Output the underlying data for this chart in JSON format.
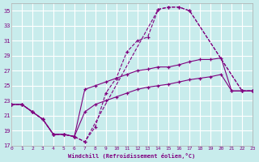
{
  "xlabel": "Windchill (Refroidissement éolien,°C)",
  "bg_color": "#c8ecec",
  "grid_color": "#ffffff",
  "line_color": "#800080",
  "xlim": [
    0,
    23
  ],
  "ylim": [
    17,
    36
  ],
  "yticks": [
    17,
    19,
    21,
    23,
    25,
    27,
    29,
    31,
    33,
    35
  ],
  "xticks": [
    0,
    1,
    2,
    3,
    4,
    5,
    6,
    7,
    8,
    9,
    10,
    11,
    12,
    13,
    14,
    15,
    16,
    17,
    18,
    19,
    20,
    21,
    22,
    23
  ],
  "curve1_x": [
    0,
    1,
    2,
    3,
    4,
    5,
    6,
    7,
    8,
    9,
    10,
    11,
    12,
    13,
    14,
    15,
    16,
    17,
    22,
    23
  ],
  "curve1_y": [
    22.5,
    22.5,
    21.5,
    20.5,
    18.5,
    18.5,
    18.2,
    17.5,
    19.5,
    24.0,
    26.0,
    29.5,
    31.0,
    31.5,
    35.2,
    35.5,
    35.5,
    35.0,
    24.3,
    24.3
  ],
  "curve2_x": [
    0,
    1,
    2,
    3,
    4,
    5,
    6,
    7,
    14,
    15,
    16,
    17,
    22,
    23
  ],
  "curve2_y": [
    22.5,
    22.5,
    21.5,
    20.5,
    18.5,
    18.5,
    18.2,
    17.5,
    35.2,
    35.5,
    35.5,
    35.0,
    24.3,
    24.3
  ],
  "curve3_x": [
    0,
    1,
    2,
    3,
    4,
    5,
    6,
    7,
    8,
    9,
    10,
    11,
    12,
    13,
    14,
    15,
    16,
    17,
    18,
    19,
    20,
    21,
    22,
    23
  ],
  "curve3_y": [
    22.5,
    22.5,
    21.5,
    20.5,
    18.5,
    18.5,
    18.2,
    24.5,
    25.0,
    25.5,
    26.0,
    26.5,
    27.0,
    27.2,
    27.5,
    27.5,
    27.8,
    28.2,
    28.5,
    28.5,
    28.7,
    24.3,
    24.3,
    24.3
  ],
  "curve4_x": [
    0,
    1,
    2,
    3,
    4,
    5,
    6,
    7,
    8,
    9,
    10,
    11,
    12,
    13,
    14,
    15,
    16,
    17,
    18,
    19,
    20,
    21,
    22,
    23
  ],
  "curve4_y": [
    22.5,
    22.5,
    21.5,
    20.5,
    18.5,
    18.5,
    18.2,
    21.5,
    22.5,
    23.0,
    23.5,
    24.0,
    24.5,
    24.8,
    25.0,
    25.2,
    25.5,
    25.8,
    26.0,
    26.2,
    26.5,
    24.3,
    24.3,
    24.3
  ]
}
